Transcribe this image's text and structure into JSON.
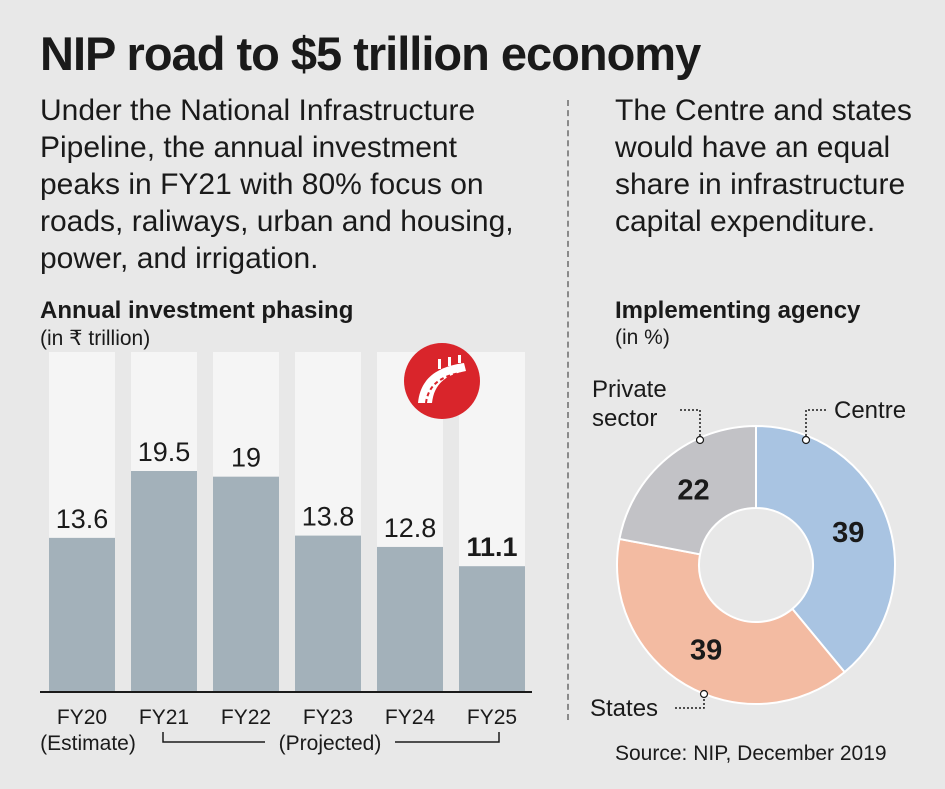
{
  "title": "NIP road to $5 trillion economy",
  "intro_left": "Under the National Infrastructure Pipeline, the annual investment peaks in FY21 with 80% focus on roads, raliways, urban and housing, power, and irrigation.",
  "intro_right": "The Centre and states would have an equal share in infrastructure capital expenditure.",
  "source": "Source: NIP, December 2019",
  "logo_icon": "road-logo-icon",
  "chart_data": [
    {
      "type": "bar",
      "title": "Annual investment phasing",
      "unit_label": "(in ₹ trillion)",
      "categories": [
        "FY20",
        "FY21",
        "FY22",
        "FY23",
        "FY24",
        "FY25"
      ],
      "values": [
        13.6,
        19.5,
        19,
        13.8,
        12.8,
        11.1
      ],
      "value_labels": [
        "13.6",
        "19.5",
        "19",
        "13.8",
        "12.8",
        "11.1"
      ],
      "highlight_last": true,
      "sub_labels": {
        "estimate": "(Estimate)",
        "projected": "(Projected)"
      },
      "ylim": [
        0,
        30
      ],
      "bar_color": "#a3b1ba",
      "band_color": "#f5f5f5"
    },
    {
      "type": "pie",
      "title": "Implementing agency",
      "unit_label": "(in %)",
      "donut": true,
      "slices": [
        {
          "name": "Centre",
          "value": 39,
          "color": "#a9c4e2",
          "label": "Centre",
          "value_label": "39"
        },
        {
          "name": "States",
          "value": 39,
          "color": "#f3bba2",
          "label": "States",
          "value_label": "39"
        },
        {
          "name": "Private sector",
          "value": 22,
          "color": "#c2c2c6",
          "label_line1": "Private",
          "label_line2": "sector",
          "value_label": "22"
        }
      ]
    }
  ]
}
